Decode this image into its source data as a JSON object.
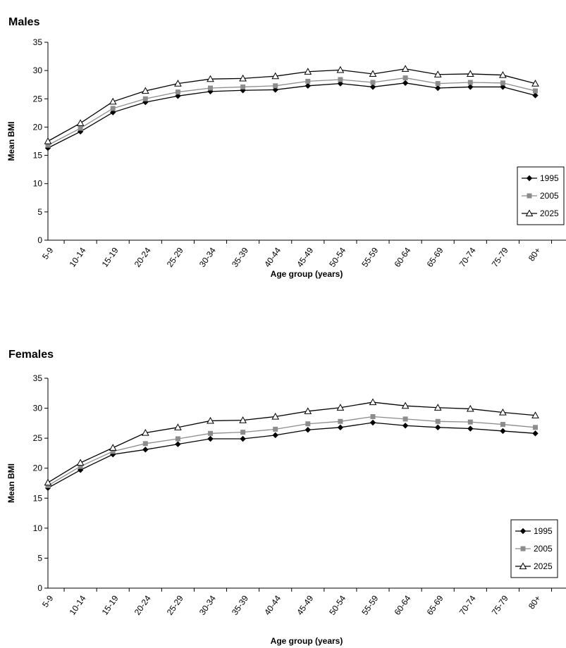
{
  "chart_data": [
    {
      "type": "line",
      "title": "Males",
      "xlabel": "Age group (years)",
      "ylabel": "Mean BMI",
      "ylim": [
        0,
        35
      ],
      "yticks": [
        "0",
        "5",
        "10",
        "15",
        "20",
        "25",
        "30",
        "35"
      ],
      "grid": false,
      "legend_position": "bottom-right",
      "categories": [
        "5-9",
        "10-14",
        "15-19",
        "20-24",
        "25-29",
        "30-34",
        "35-39",
        "40-44",
        "45-49",
        "50-54",
        "55-59",
        "60-64",
        "65-69",
        "70-74",
        "75-79",
        "80+"
      ],
      "series": [
        {
          "name": "1995",
          "marker": "diamond",
          "color": "#000000",
          "values": [
            16.3,
            19.2,
            22.6,
            24.4,
            25.5,
            26.3,
            26.5,
            26.6,
            27.3,
            27.7,
            27.1,
            27.8,
            26.9,
            27.1,
            27.1,
            25.6
          ]
        },
        {
          "name": "2005",
          "marker": "square",
          "color": "#8c8c8c",
          "values": [
            16.8,
            19.8,
            23.3,
            25.0,
            26.2,
            26.9,
            27.1,
            27.3,
            28.1,
            28.4,
            27.9,
            28.7,
            27.7,
            27.9,
            27.8,
            26.4
          ]
        },
        {
          "name": "2025",
          "marker": "triangle",
          "color": "#000000",
          "values": [
            17.5,
            20.7,
            24.5,
            26.4,
            27.7,
            28.5,
            28.6,
            29.0,
            29.8,
            30.1,
            29.4,
            30.3,
            29.3,
            29.4,
            29.2,
            27.7
          ]
        }
      ]
    },
    {
      "type": "line",
      "title": "Females",
      "xlabel": "Age group (years)",
      "ylabel": "Mean BMI",
      "ylim": [
        0,
        35
      ],
      "yticks": [
        "0",
        "5",
        "10",
        "15",
        "20",
        "25",
        "30",
        "35"
      ],
      "grid": false,
      "legend_position": "bottom-right",
      "categories": [
        "5-9",
        "10-14",
        "15-19",
        "20-24",
        "25-29",
        "30-34",
        "35-39",
        "40-44",
        "45-49",
        "50-54",
        "55-59",
        "60-64",
        "65-69",
        "70-74",
        "75-79",
        "80+"
      ],
      "series": [
        {
          "name": "1995",
          "marker": "diamond",
          "color": "#000000",
          "values": [
            16.7,
            19.7,
            22.3,
            23.1,
            24.0,
            24.9,
            24.9,
            25.5,
            26.4,
            26.8,
            27.6,
            27.1,
            26.8,
            26.6,
            26.2,
            25.8
          ]
        },
        {
          "name": "2005",
          "marker": "square",
          "color": "#8c8c8c",
          "values": [
            17.1,
            20.3,
            22.8,
            24.1,
            24.9,
            25.8,
            26.0,
            26.5,
            27.4,
            27.8,
            28.6,
            28.2,
            27.8,
            27.7,
            27.3,
            26.8
          ]
        },
        {
          "name": "2025",
          "marker": "triangle",
          "color": "#000000",
          "values": [
            17.6,
            20.9,
            23.4,
            25.9,
            26.8,
            27.9,
            28.0,
            28.6,
            29.5,
            30.1,
            31.0,
            30.4,
            30.1,
            29.9,
            29.3,
            28.8
          ]
        }
      ]
    }
  ]
}
